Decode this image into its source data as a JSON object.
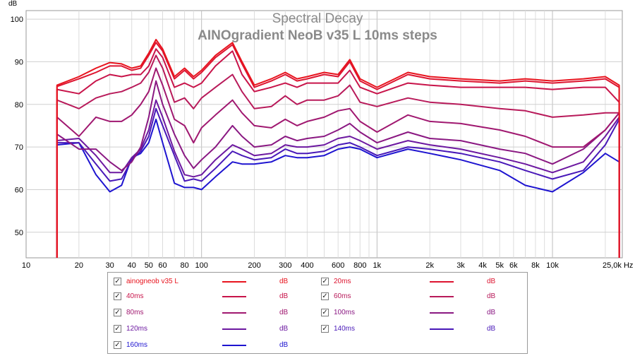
{
  "chart_data": {
    "type": "line",
    "title": "Spectral Decay",
    "subtitle": "AINOgradient NeoB v35 L 10ms steps",
    "ylabel": "dB",
    "x_unit_label": "Hz",
    "x_scale": "log",
    "xlim": [
      10,
      25000
    ],
    "ylim": [
      44,
      102
    ],
    "grid": true,
    "x_ticks": [
      {
        "v": 10,
        "t": "10"
      },
      {
        "v": 20,
        "t": "20"
      },
      {
        "v": 30,
        "t": "30"
      },
      {
        "v": 40,
        "t": "40"
      },
      {
        "v": 50,
        "t": "50"
      },
      {
        "v": 60,
        "t": "60"
      },
      {
        "v": 80,
        "t": "80"
      },
      {
        "v": 100,
        "t": "100"
      },
      {
        "v": 200,
        "t": "200"
      },
      {
        "v": 300,
        "t": "300"
      },
      {
        "v": 400,
        "t": "400"
      },
      {
        "v": 600,
        "t": "600"
      },
      {
        "v": 800,
        "t": "800"
      },
      {
        "v": 1000,
        "t": "1k"
      },
      {
        "v": 2000,
        "t": "2k"
      },
      {
        "v": 3000,
        "t": "3k"
      },
      {
        "v": 4000,
        "t": "4k"
      },
      {
        "v": 5000,
        "t": "5k"
      },
      {
        "v": 6000,
        "t": "6k"
      },
      {
        "v": 8000,
        "t": "8k"
      },
      {
        "v": 10000,
        "t": "10k"
      },
      {
        "v": 25000,
        "t": "25,0k Hz"
      }
    ],
    "y_ticks": [
      50,
      60,
      70,
      80,
      90,
      100
    ],
    "series_x": [
      15,
      20,
      25,
      30,
      35,
      40,
      45,
      50,
      55,
      60,
      70,
      80,
      90,
      100,
      120,
      150,
      170,
      200,
      250,
      300,
      350,
      400,
      500,
      600,
      700,
      800,
      1000,
      1500,
      2000,
      3000,
      5000,
      7000,
      10000,
      15000,
      20000,
      24000
    ],
    "series": [
      {
        "name": "ainogneob v35 L",
        "color": "#e8141e",
        "unit": "dB",
        "values": [
          84.5,
          86.5,
          88.5,
          89.8,
          89.5,
          88.5,
          89,
          92,
          95.2,
          93,
          86.5,
          88.5,
          86.5,
          88,
          91.5,
          94.5,
          90,
          84.5,
          86,
          87.5,
          86,
          86.5,
          87.5,
          87,
          90.5,
          86,
          84,
          87.5,
          86.5,
          86,
          85.5,
          86,
          85.5,
          86,
          86.5,
          84.5
        ]
      },
      {
        "name": "20ms",
        "color": "#dd1430",
        "unit": "dB",
        "values": [
          84.2,
          86,
          87.5,
          89,
          89,
          88,
          88.5,
          91.5,
          94.5,
          92.5,
          86,
          88,
          86,
          87.5,
          91,
          94,
          89.5,
          84,
          85.5,
          87,
          85.5,
          86,
          87,
          86.5,
          90,
          85.5,
          83.5,
          87,
          86,
          85.5,
          85,
          85.5,
          85,
          85.5,
          86,
          84
        ]
      },
      {
        "name": "40ms",
        "color": "#c8144a",
        "unit": "dB",
        "values": [
          83.5,
          82.5,
          85.5,
          87,
          86.5,
          87,
          87,
          89,
          93,
          91,
          84,
          85,
          84,
          85,
          89,
          92.5,
          87,
          83,
          84,
          85,
          84,
          85,
          85,
          85,
          88,
          84,
          82.5,
          85,
          84.5,
          84,
          84,
          84,
          83.5,
          84,
          84,
          80.5
        ]
      },
      {
        "name": "60ms",
        "color": "#b81a5a",
        "unit": "dB",
        "values": [
          81,
          79,
          81.5,
          82.5,
          83,
          84,
          85,
          87.5,
          91.5,
          88.5,
          80.5,
          81.5,
          79,
          81.5,
          84,
          87,
          83,
          79,
          79.5,
          82,
          80,
          81,
          81,
          82,
          84.5,
          80.5,
          79.5,
          81.5,
          80.5,
          80,
          79,
          78.5,
          77,
          77.5,
          78,
          78
        ]
      },
      {
        "name": "80ms",
        "color": "#a01870",
        "unit": "dB",
        "values": [
          77,
          72.5,
          77,
          76,
          76,
          77.5,
          80,
          83,
          88.5,
          84.5,
          76.5,
          75,
          71,
          74.5,
          77.5,
          81,
          78,
          75,
          74.5,
          76.5,
          75,
          76,
          77,
          78.5,
          79,
          76,
          73.5,
          77.5,
          76,
          75.5,
          74,
          72.5,
          70,
          70,
          74,
          78
        ]
      },
      {
        "name": "100ms",
        "color": "#8a1882",
        "unit": "dB",
        "values": [
          73,
          69.5,
          69.5,
          66.5,
          64.5,
          66.5,
          70,
          77,
          85.5,
          80,
          73,
          68,
          65,
          67,
          70,
          75,
          72.5,
          70,
          70.5,
          72.5,
          71.5,
          72,
          72.5,
          74,
          75.5,
          73.5,
          71,
          73.5,
          72,
          71.5,
          69.5,
          68.5,
          66,
          69.5,
          74,
          78
        ]
      },
      {
        "name": "120ms",
        "color": "#6c18a0",
        "unit": "dB",
        "values": [
          71.5,
          72,
          68,
          64,
          64,
          67.5,
          69.5,
          74,
          81,
          77,
          69,
          63.5,
          63,
          63.5,
          67,
          70.5,
          69.5,
          68,
          68.5,
          70.5,
          70,
          70,
          70.5,
          72,
          72.5,
          71.5,
          69.5,
          71.5,
          70.5,
          69.5,
          67.5,
          66,
          64,
          66.5,
          72.5,
          77
        ]
      },
      {
        "name": "140ms",
        "color": "#4818b8",
        "unit": "dB",
        "values": [
          71,
          71,
          66,
          62,
          62.5,
          67,
          69,
          72.5,
          79,
          75,
          68,
          62,
          62.5,
          62,
          65,
          69,
          68,
          67,
          67.5,
          69.5,
          68.5,
          68.5,
          69,
          70.5,
          71,
          70,
          68,
          70,
          69.5,
          68.5,
          66.5,
          64.5,
          62.5,
          64.5,
          70.5,
          76.5
        ]
      },
      {
        "name": "160ms",
        "color": "#1e14d0",
        "unit": "dB",
        "values": [
          70.5,
          71,
          63.5,
          59.5,
          61,
          67.5,
          68.5,
          71,
          76.5,
          71,
          61.5,
          60.5,
          60.5,
          60,
          63,
          66.5,
          66,
          66,
          66.5,
          68,
          67.5,
          67.5,
          68,
          69.5,
          70,
          69.5,
          67.5,
          69.5,
          68.5,
          67,
          64.5,
          61,
          59.5,
          64,
          68.5,
          66.5
        ]
      }
    ]
  },
  "legend": {
    "items": [
      {
        "name": "ainogneob v35 L",
        "unit": "dB",
        "color": "#e8141e",
        "checked": "✓"
      },
      {
        "name": "20ms",
        "unit": "dB",
        "color": "#dd1430",
        "checked": "✓"
      },
      {
        "name": "40ms",
        "unit": "dB",
        "color": "#c8144a",
        "checked": "✓"
      },
      {
        "name": "60ms",
        "unit": "dB",
        "color": "#b81a5a",
        "checked": "✓"
      },
      {
        "name": "80ms",
        "unit": "dB",
        "color": "#a01870",
        "checked": "✓"
      },
      {
        "name": "100ms",
        "unit": "dB",
        "color": "#8a1882",
        "checked": "✓"
      },
      {
        "name": "120ms",
        "unit": "dB",
        "color": "#6c18a0",
        "checked": "✓"
      },
      {
        "name": "140ms",
        "unit": "dB",
        "color": "#4818b8",
        "checked": "✓"
      },
      {
        "name": "160ms",
        "unit": "dB",
        "color": "#1e14d0",
        "checked": "✓"
      }
    ]
  }
}
